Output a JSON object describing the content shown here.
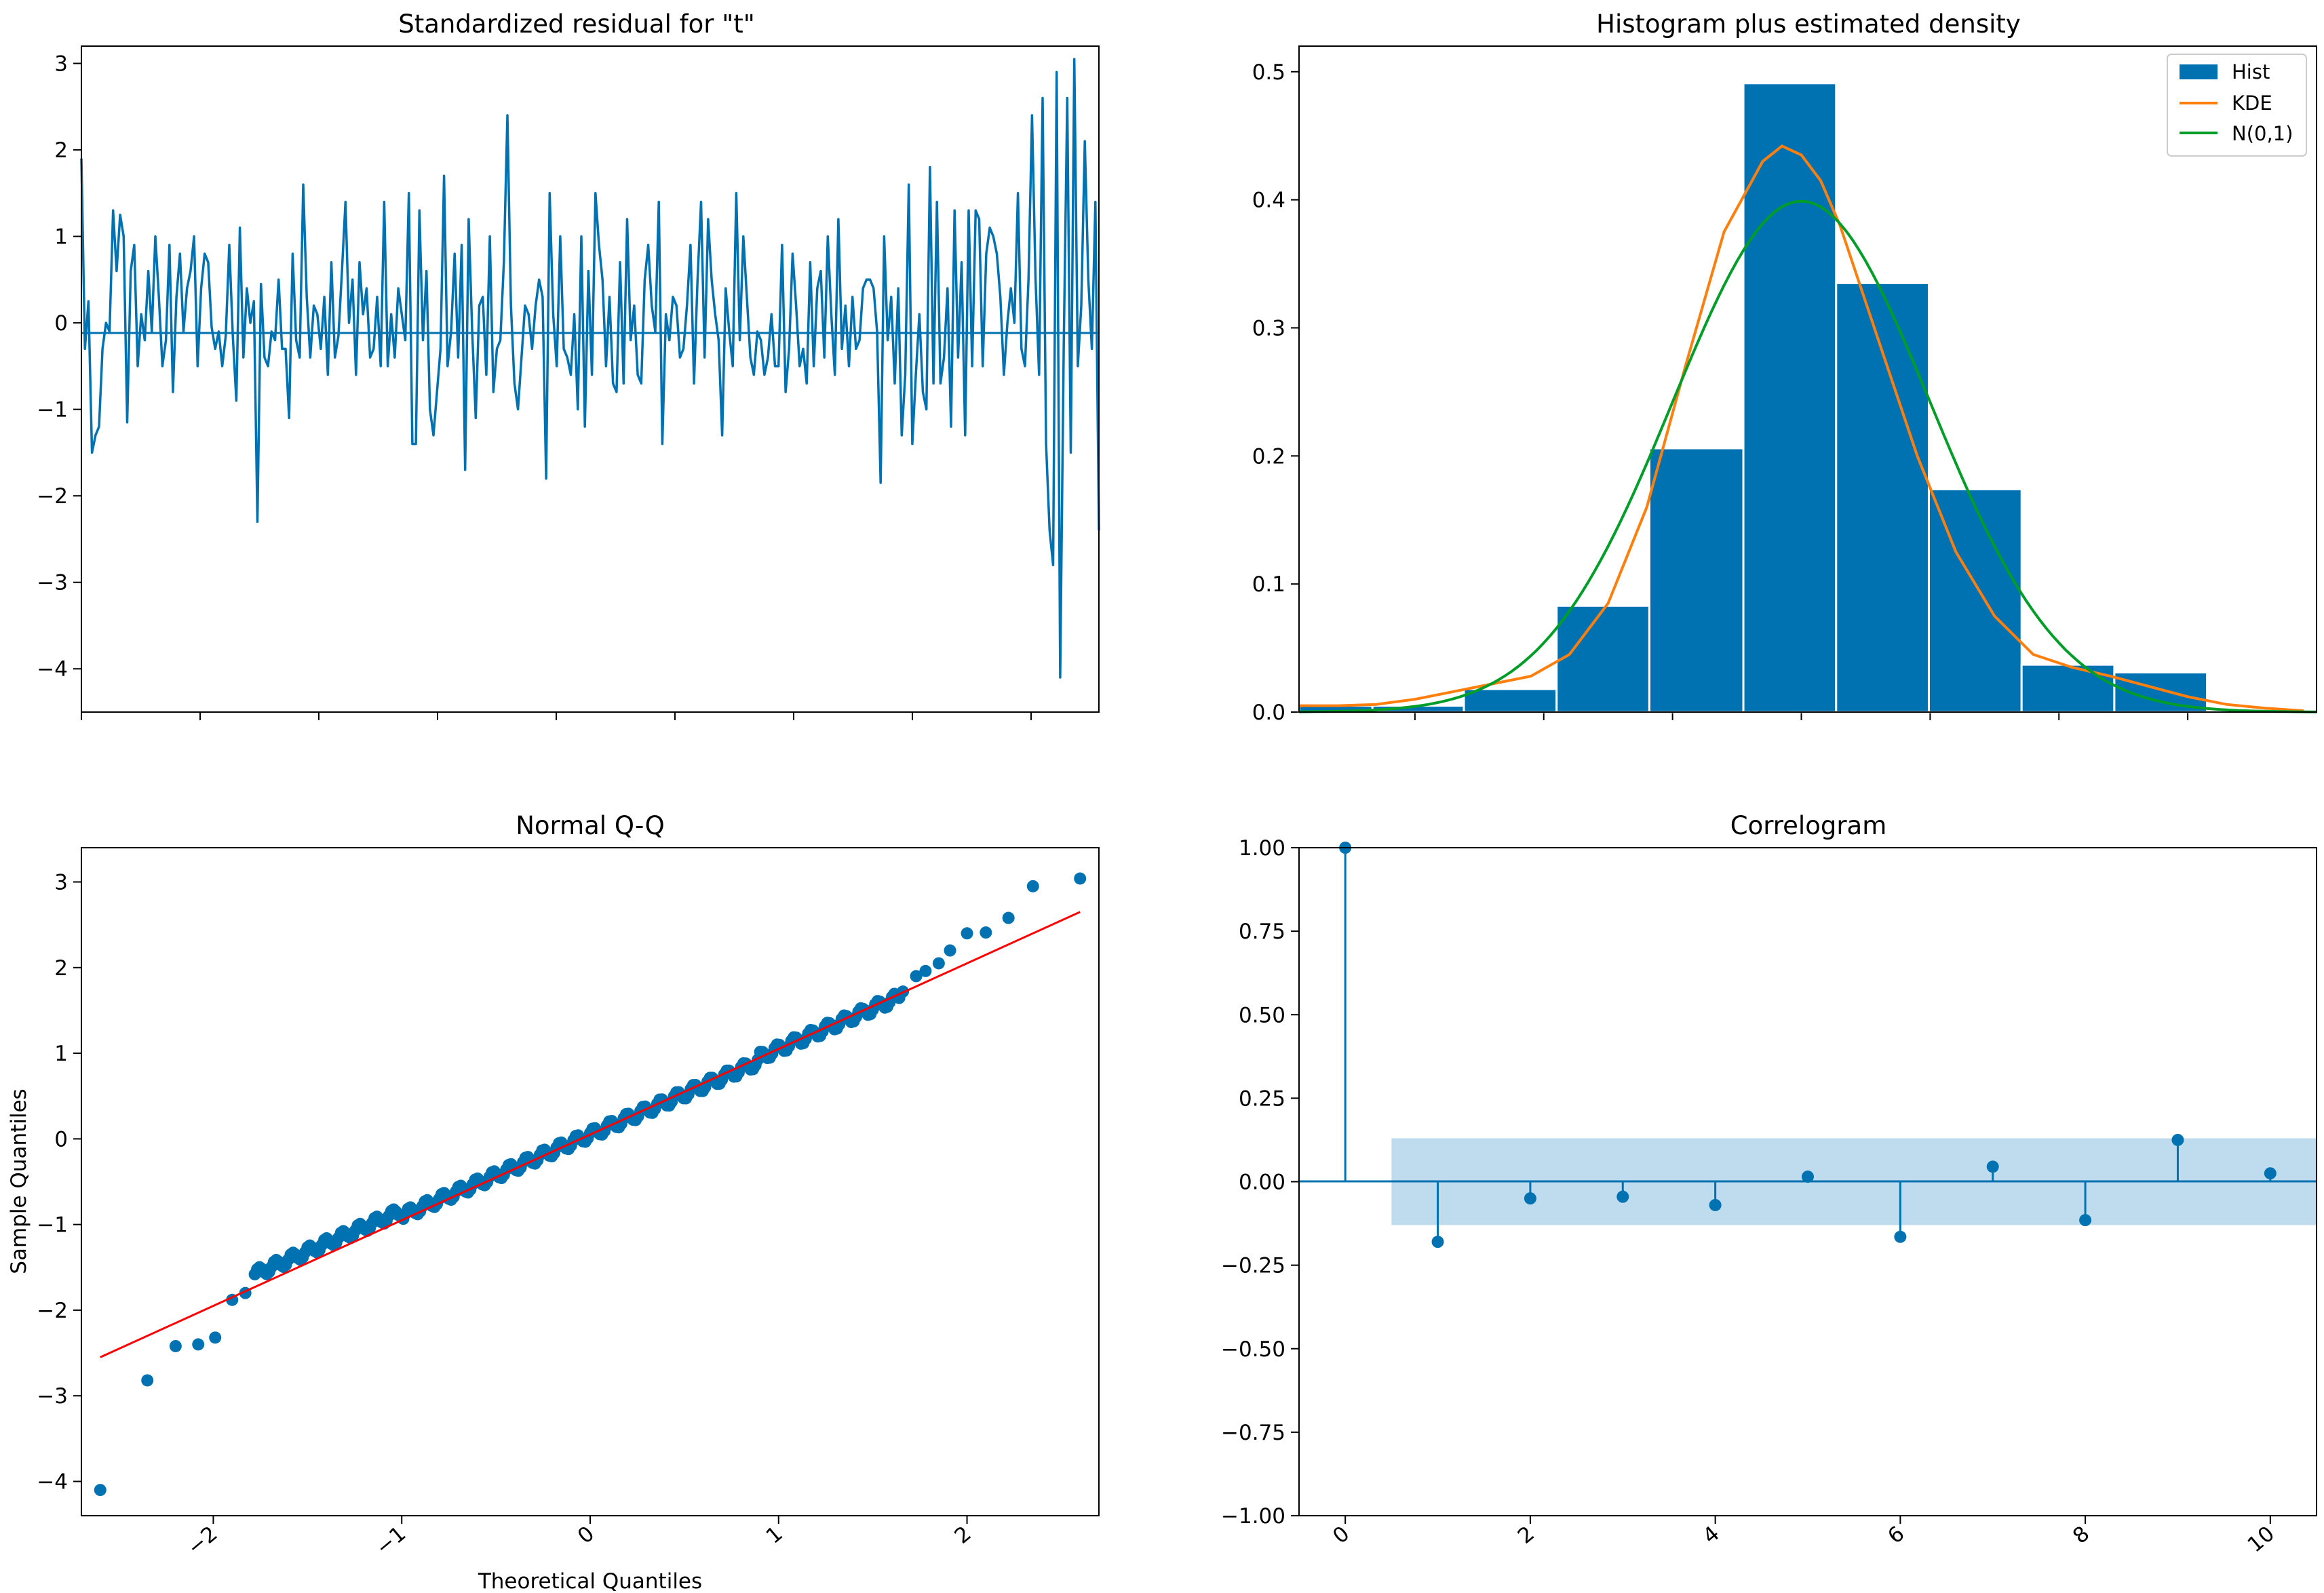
{
  "colors": {
    "blue": "#0072B2",
    "hist_blue": "#0072B2",
    "orange": "#FF7F0E",
    "green": "#009E28",
    "red": "#FF0000",
    "band": "#BFDCEF",
    "axes": "#000000"
  },
  "chart_data": [
    {
      "type": "line",
      "title": "Standardized residual for \"t\"",
      "xlabel": "",
      "ylabel": "",
      "ylim": [
        -4.5,
        3.2
      ],
      "yticks": [
        "3",
        "2",
        "1",
        "0",
        "−1",
        "−2",
        "−3",
        "−4"
      ],
      "xticks_labeled": false,
      "zero_line": true,
      "series": [
        {
          "values": [
            1.9,
            -0.3,
            0.25,
            -1.5,
            -1.3,
            -1.2,
            -0.3,
            0.0,
            -0.1,
            1.3,
            0.6,
            1.25,
            1.0,
            -1.15,
            0.6,
            0.9,
            -0.5,
            0.1,
            -0.2,
            0.6,
            -0.1,
            1.0,
            0.3,
            -0.5,
            -0.2,
            0.9,
            -0.8,
            0.3,
            0.8,
            -0.1,
            0.4,
            0.6,
            1.0,
            -0.5,
            0.4,
            0.8,
            0.7,
            -0.05,
            -0.3,
            -0.1,
            -0.5,
            -0.15,
            0.9,
            -0.15,
            -0.9,
            1.1,
            -0.4,
            0.4,
            0.0,
            0.25,
            -2.3,
            0.45,
            -0.4,
            -0.5,
            -0.1,
            -0.2,
            0.5,
            -0.3,
            -0.3,
            -1.1,
            0.8,
            -0.2,
            -0.4,
            1.6,
            0.3,
            -0.4,
            0.2,
            0.1,
            -0.3,
            0.3,
            -0.6,
            0.7,
            -0.4,
            -0.15,
            0.6,
            1.4,
            0.0,
            0.5,
            -0.6,
            0.7,
            0.1,
            0.4,
            -0.4,
            -0.3,
            0.3,
            -0.5,
            1.4,
            -0.5,
            0.1,
            -0.4,
            0.4,
            0.1,
            -0.2,
            1.5,
            -1.4,
            -1.4,
            1.3,
            -0.2,
            0.6,
            -1.0,
            -1.3,
            -0.8,
            -0.3,
            1.7,
            -0.5,
            -0.1,
            0.8,
            -0.4,
            0.9,
            -1.7,
            1.2,
            -0.1,
            -1.1,
            0.2,
            0.3,
            -0.6,
            1.0,
            -0.8,
            -0.3,
            -0.2,
            0.7,
            2.4,
            0.2,
            -0.7,
            -1.0,
            -0.4,
            0.2,
            0.1,
            -0.3,
            0.2,
            0.5,
            0.3,
            -1.8,
            1.5,
            0.1,
            -0.5,
            1.0,
            -0.3,
            -0.4,
            -0.6,
            0.1,
            -1.0,
            1.0,
            -1.2,
            0.6,
            -0.6,
            1.5,
            0.9,
            0.5,
            -0.5,
            0.3,
            -0.7,
            -0.8,
            0.7,
            -0.7,
            1.2,
            -0.2,
            0.2,
            -0.6,
            -0.7,
            0.5,
            0.9,
            0.2,
            -0.1,
            1.4,
            -1.4,
            0.1,
            -0.2,
            0.3,
            0.2,
            -0.4,
            -0.3,
            0.2,
            0.9,
            -0.7,
            0.5,
            1.4,
            -0.4,
            1.2,
            0.5,
            0.1,
            -0.2,
            -1.3,
            0.4,
            -0.1,
            -0.5,
            1.5,
            -0.2,
            1.0,
            0.3,
            -0.4,
            -0.6,
            -0.1,
            -0.2,
            -0.6,
            -0.4,
            0.1,
            -0.5,
            -0.5,
            0.9,
            -0.8,
            -0.3,
            0.8,
            0.2,
            -0.5,
            -0.3,
            -0.7,
            0.7,
            -0.5,
            0.4,
            0.6,
            -0.4,
            1.0,
            0.1,
            -0.6,
            1.2,
            -0.3,
            0.2,
            -0.5,
            0.3,
            -0.3,
            -0.2,
            0.4,
            0.5,
            0.5,
            0.4,
            -0.1,
            -1.85,
            1.0,
            -0.2,
            0.3,
            -0.7,
            0.4,
            -1.3,
            -0.6,
            1.6,
            -1.4,
            -0.6,
            0.1,
            -0.8,
            -1.0,
            1.8,
            -0.7,
            1.4,
            -0.7,
            -0.4,
            0.4,
            -1.2,
            1.3,
            -0.4,
            0.7,
            -1.3,
            1.3,
            -0.5,
            1.3,
            1.2,
            -0.5,
            0.8,
            1.1,
            1.0,
            0.8,
            0.3,
            -0.6,
            0.0,
            0.4,
            0.0,
            1.5,
            -0.3,
            -0.5,
            0.5,
            2.4,
            0.5,
            -0.6,
            2.6,
            -1.4,
            -2.4,
            -2.8,
            2.9,
            -4.1,
            -0.3,
            2.6,
            -1.5,
            3.05,
            -0.5,
            0.2,
            2.1,
            0.5,
            -0.3,
            1.4,
            -2.4
          ]
        }
      ]
    },
    {
      "type": "bar",
      "title": "Histogram plus estimated density",
      "xlabel": "",
      "ylabel": "",
      "ylim": [
        0.0,
        0.52
      ],
      "xlim": [
        -3.9,
        4.0
      ],
      "yticks": [
        "0.0",
        "0.1",
        "0.2",
        "0.3",
        "0.4",
        "0.5"
      ],
      "xticks_labeled": false,
      "legend_position": "top-right",
      "bins": [
        {
          "from": -3.9,
          "to": -3.33,
          "value": 0.005
        },
        {
          "from": -3.33,
          "to": -2.62,
          "value": 0.005
        },
        {
          "from": -2.62,
          "to": -1.9,
          "value": 0.018
        },
        {
          "from": -1.9,
          "to": -1.18,
          "value": 0.083
        },
        {
          "from": -1.18,
          "to": -0.45,
          "value": 0.206
        },
        {
          "from": -0.45,
          "to": 0.27,
          "value": 0.491
        },
        {
          "from": 0.27,
          "to": 0.99,
          "value": 0.335
        },
        {
          "from": 0.99,
          "to": 1.71,
          "value": 0.174
        },
        {
          "from": 1.71,
          "to": 2.43,
          "value": 0.037
        },
        {
          "from": 2.43,
          "to": 3.15,
          "value": 0.031
        }
      ],
      "series": [
        {
          "name": "Hist",
          "kind": "bars"
        },
        {
          "name": "KDE",
          "x": [
            -3.9,
            -3.6,
            -3.3,
            -3.0,
            -2.7,
            -2.4,
            -2.1,
            -1.8,
            -1.5,
            -1.2,
            -0.9,
            -0.6,
            -0.3,
            -0.15,
            0.0,
            0.15,
            0.3,
            0.6,
            0.9,
            1.2,
            1.5,
            1.8,
            2.1,
            2.4,
            2.7,
            3.0,
            3.3,
            3.6,
            3.9
          ],
          "y": [
            0.005,
            0.005,
            0.006,
            0.01,
            0.016,
            0.022,
            0.028,
            0.045,
            0.085,
            0.16,
            0.27,
            0.375,
            0.43,
            0.442,
            0.435,
            0.415,
            0.38,
            0.29,
            0.2,
            0.125,
            0.075,
            0.045,
            0.035,
            0.028,
            0.02,
            0.012,
            0.006,
            0.003,
            0.001
          ]
        },
        {
          "name": "N(0,1)",
          "kind": "standard-normal-pdf",
          "mean": 0,
          "sd": 1
        }
      ]
    },
    {
      "type": "scatter",
      "title": "Normal Q-Q",
      "xlabel": "Theoretical Quantiles",
      "ylabel": "Sample Quantiles",
      "xlim": [
        -2.7,
        2.7
      ],
      "ylim": [
        -4.4,
        3.4
      ],
      "xticks": [
        "−2",
        "−1",
        "0",
        "1",
        "2"
      ],
      "yticks": [
        "3",
        "2",
        "1",
        "0",
        "−1",
        "−2",
        "−3",
        "−4"
      ],
      "reference_line": {
        "x": [
          -2.6,
          2.6
        ],
        "y": [
          -2.55,
          2.65
        ]
      },
      "outlier_points": [
        {
          "x": -2.6,
          "y": -4.1
        },
        {
          "x": -2.35,
          "y": -2.82
        },
        {
          "x": -2.2,
          "y": -2.42
        },
        {
          "x": -2.08,
          "y": -2.4
        },
        {
          "x": -1.99,
          "y": -2.32
        },
        {
          "x": -1.9,
          "y": -1.88
        },
        {
          "x": -1.83,
          "y": -1.8
        },
        {
          "x": 1.66,
          "y": 1.72
        },
        {
          "x": 1.73,
          "y": 1.9
        },
        {
          "x": 1.78,
          "y": 1.96
        },
        {
          "x": 1.85,
          "y": 2.05
        },
        {
          "x": 1.91,
          "y": 2.2
        },
        {
          "x": 2.0,
          "y": 2.4
        },
        {
          "x": 2.1,
          "y": 2.41
        },
        {
          "x": 2.22,
          "y": 2.58
        },
        {
          "x": 2.35,
          "y": 2.95
        },
        {
          "x": 2.6,
          "y": 3.04
        }
      ],
      "body_points": {
        "count": 270,
        "x_from": -1.78,
        "x_to": 1.64,
        "approx_slope": 0.95,
        "approx_intercept": 0.05
      }
    },
    {
      "type": "stem",
      "title": "Correlogram",
      "xlabel": "",
      "ylabel": "",
      "xlim": [
        -0.5,
        10.5
      ],
      "ylim": [
        -1.0,
        1.0
      ],
      "xticks": [
        "0",
        "2",
        "4",
        "6",
        "8",
        "10"
      ],
      "yticks": [
        "1.00",
        "0.75",
        "0.50",
        "0.25",
        "0.00",
        "−0.25",
        "−0.50",
        "−0.75",
        "−1.00"
      ],
      "confidence_band": {
        "x": [
          0.5,
          10.5
        ],
        "y": [
          -0.13,
          0.13
        ]
      },
      "lags": [
        0,
        1,
        2,
        3,
        4,
        5,
        6,
        7,
        8,
        9,
        10
      ],
      "values": [
        1.0,
        -0.18,
        -0.05,
        -0.045,
        -0.07,
        0.015,
        -0.165,
        0.045,
        -0.115,
        0.125,
        0.025
      ]
    }
  ]
}
